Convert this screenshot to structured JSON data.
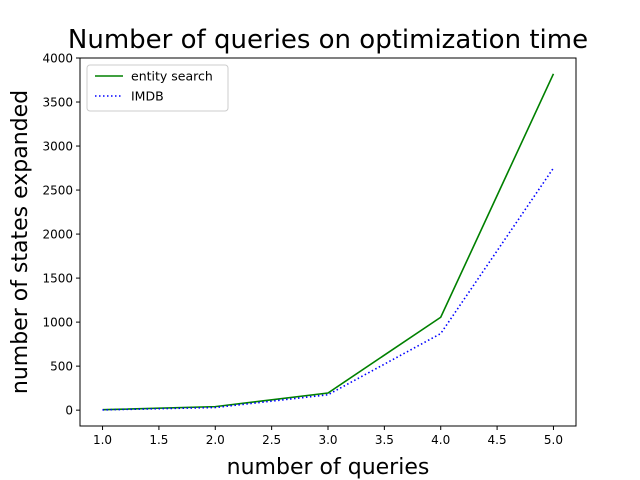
{
  "chart_data": {
    "type": "line",
    "title": "Number of queries on optimization time",
    "xlabel": "number of queries",
    "ylabel": "number of states expanded",
    "xlim": [
      0.8,
      5.2
    ],
    "ylim": [
      -180,
      4000
    ],
    "xticks": [
      1.0,
      1.5,
      2.0,
      2.5,
      3.0,
      3.5,
      4.0,
      4.5,
      5.0
    ],
    "xtick_labels": [
      "1.0",
      "1.5",
      "2.0",
      "2.5",
      "3.0",
      "3.5",
      "4.0",
      "4.5",
      "5.0"
    ],
    "yticks": [
      0,
      500,
      1000,
      1500,
      2000,
      2500,
      3000,
      3500,
      4000
    ],
    "ytick_labels": [
      "0",
      "500",
      "1000",
      "1500",
      "2000",
      "2500",
      "3000",
      "3500",
      "4000"
    ],
    "grid": false,
    "legend_position": "top-left",
    "series": [
      {
        "name": "entity search",
        "x": [
          1,
          2,
          3,
          4,
          5
        ],
        "values": [
          5,
          40,
          195,
          1055,
          3820
        ],
        "color": "#008000",
        "style": "solid"
      },
      {
        "name": "IMDB",
        "x": [
          1,
          2,
          3,
          4,
          5
        ],
        "values": [
          3,
          30,
          175,
          870,
          2750
        ],
        "color": "#0000ff",
        "style": "dotted"
      }
    ]
  }
}
